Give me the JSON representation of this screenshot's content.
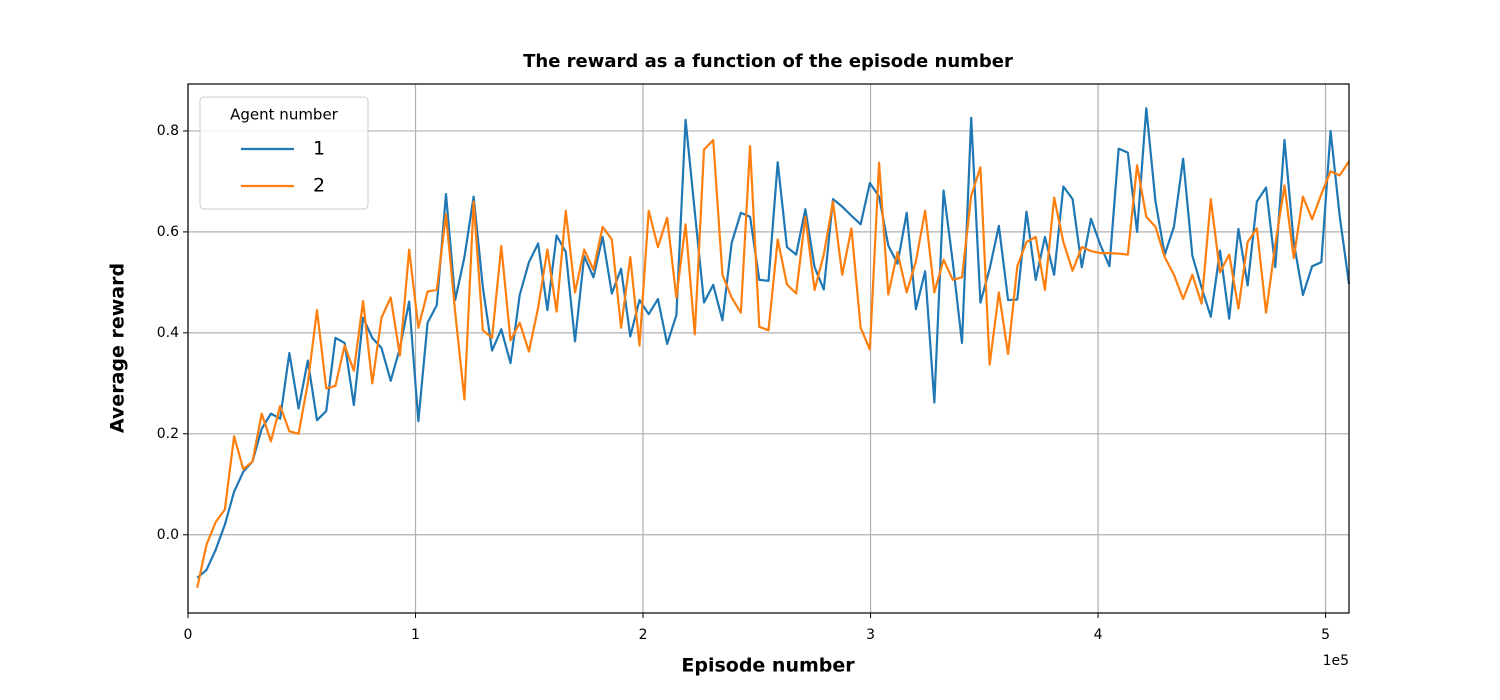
{
  "chart_data": {
    "type": "line",
    "title": "The reward as a function of the episode number",
    "x_label": "Episode number",
    "y_label": "Average reward",
    "x_offset_label": "1e5",
    "legend_title": "Agent number",
    "legend_loc": "upper left",
    "grid": true,
    "xlim": [
      0,
      510300
    ],
    "ylim": [
      -0.155,
      0.893
    ],
    "xticks": [
      0,
      {
        "value": 100000,
        "label": "1"
      },
      {
        "value": 200000,
        "label": "2"
      },
      {
        "value": 300000,
        "label": "3"
      },
      {
        "value": 400000,
        "label": "4"
      },
      {
        "value": 500000,
        "label": "5"
      }
    ],
    "yticks": [
      {
        "value": 0,
        "label": "0.0"
      },
      0.2,
      0.4,
      0.6,
      0.8
    ],
    "x": [
      4050,
      8100,
      12150,
      16200,
      20250,
      24300,
      28350,
      32400,
      36450,
      40500,
      44550,
      48600,
      52650,
      56700,
      60750,
      64800,
      68850,
      72900,
      76950,
      81000,
      85050,
      89100,
      93150,
      97200,
      101250,
      105300,
      109350,
      113400,
      117450,
      121500,
      125550,
      129600,
      133650,
      137700,
      141750,
      145800,
      149850,
      153900,
      157950,
      162000,
      166050,
      170100,
      174150,
      178200,
      182250,
      186300,
      190350,
      194400,
      198450,
      202500,
      206550,
      210600,
      214650,
      218700,
      222750,
      226800,
      230850,
      234900,
      238950,
      243000,
      247050,
      251100,
      255150,
      259200,
      263250,
      267300,
      271350,
      275400,
      279450,
      283500,
      287550,
      291600,
      295650,
      299700,
      303750,
      307800,
      311850,
      315900,
      319950,
      324000,
      328050,
      332100,
      336150,
      340200,
      344250,
      348300,
      352350,
      356400,
      360450,
      364500,
      368550,
      372600,
      376650,
      380700,
      384750,
      388800,
      392850,
      396900,
      400950,
      405000,
      409050,
      413100,
      417150,
      421200,
      425250,
      429300,
      433350,
      437400,
      441450,
      445500,
      449550,
      453600,
      457650,
      461700,
      465750,
      469800,
      473850,
      477900,
      481950,
      486000,
      490050,
      494100,
      498150,
      502200,
      506250,
      510300
    ],
    "series": [
      {
        "name": "1",
        "color": "#1f77b4",
        "values": [
          -0.085,
          -0.07,
          -0.03,
          0.02,
          0.085,
          0.125,
          0.145,
          0.21,
          0.24,
          0.23,
          0.36,
          0.25,
          0.345,
          0.227,
          0.245,
          0.39,
          0.38,
          0.257,
          0.43,
          0.39,
          0.37,
          0.305,
          0.37,
          0.462,
          0.225,
          0.42,
          0.455,
          0.675,
          0.465,
          0.55,
          0.67,
          0.49,
          0.365,
          0.407,
          0.34,
          0.475,
          0.54,
          0.577,
          0.445,
          0.593,
          0.56,
          0.383,
          0.552,
          0.51,
          0.59,
          0.478,
          0.527,
          0.393,
          0.465,
          0.437,
          0.467,
          0.378,
          0.435,
          0.822,
          0.64,
          0.46,
          0.495,
          0.425,
          0.578,
          0.638,
          0.63,
          0.505,
          0.503,
          0.738,
          0.57,
          0.555,
          0.645,
          0.53,
          0.486,
          0.665,
          0.65,
          0.632,
          0.615,
          0.697,
          0.67,
          0.573,
          0.537,
          0.638,
          0.447,
          0.522,
          0.262,
          0.682,
          0.54,
          0.38,
          0.826,
          0.46,
          0.527,
          0.612,
          0.465,
          0.466,
          0.64,
          0.505,
          0.59,
          0.515,
          0.69,
          0.665,
          0.53,
          0.626,
          0.575,
          0.532,
          0.765,
          0.757,
          0.6,
          0.845,
          0.66,
          0.555,
          0.61,
          0.745,
          0.553,
          0.49,
          0.432,
          0.563,
          0.428,
          0.606,
          0.494,
          0.66,
          0.688,
          0.53,
          0.782,
          0.58,
          0.475,
          0.532,
          0.54,
          0.8,
          0.63,
          0.497
        ]
      },
      {
        "name": "2",
        "color": "#ff7f0e",
        "values": [
          -0.105,
          -0.02,
          0.025,
          0.05,
          0.195,
          0.13,
          0.145,
          0.24,
          0.185,
          0.255,
          0.205,
          0.2,
          0.3,
          0.445,
          0.29,
          0.295,
          0.375,
          0.325,
          0.463,
          0.3,
          0.43,
          0.47,
          0.355,
          0.565,
          0.41,
          0.482,
          0.485,
          0.635,
          0.44,
          0.268,
          0.66,
          0.405,
          0.39,
          0.572,
          0.385,
          0.42,
          0.363,
          0.45,
          0.565,
          0.442,
          0.642,
          0.48,
          0.565,
          0.525,
          0.61,
          0.585,
          0.41,
          0.55,
          0.375,
          0.642,
          0.57,
          0.628,
          0.47,
          0.615,
          0.397,
          0.763,
          0.782,
          0.515,
          0.47,
          0.44,
          0.77,
          0.412,
          0.405,
          0.585,
          0.496,
          0.478,
          0.63,
          0.485,
          0.555,
          0.66,
          0.515,
          0.607,
          0.41,
          0.367,
          0.737,
          0.476,
          0.56,
          0.48,
          0.542,
          0.642,
          0.48,
          0.545,
          0.505,
          0.51,
          0.672,
          0.728,
          0.337,
          0.48,
          0.358,
          0.532,
          0.58,
          0.59,
          0.485,
          0.668,
          0.58,
          0.523,
          0.57,
          0.562,
          0.558,
          0.558,
          0.557,
          0.555,
          0.732,
          0.63,
          0.61,
          0.55,
          0.515,
          0.467,
          0.515,
          0.458,
          0.665,
          0.52,
          0.555,
          0.448,
          0.58,
          0.607,
          0.44,
          0.575,
          0.692,
          0.548,
          0.67,
          0.625,
          0.675,
          0.72,
          0.712,
          0.74
        ]
      }
    ]
  }
}
